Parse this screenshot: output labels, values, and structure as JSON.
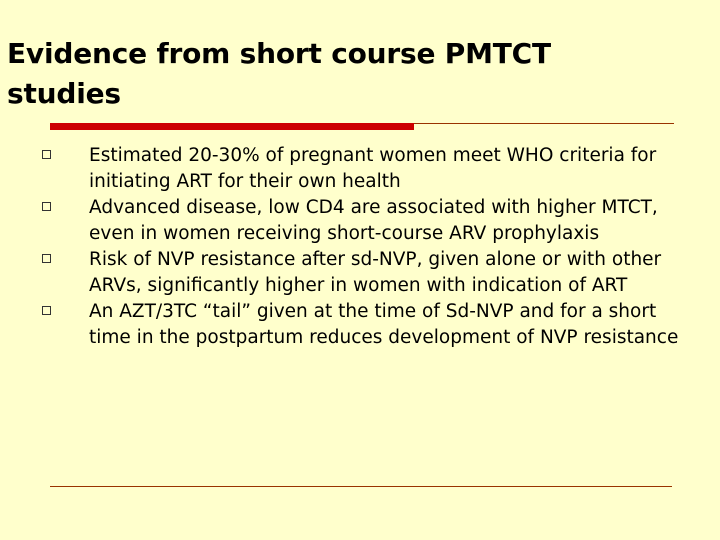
{
  "slide": {
    "title": "Evidence from short course PMTCT studies",
    "bullets": [
      "Estimated 20-30% of pregnant women meet WHO criteria for initiating ART for their own health",
      "Advanced disease, low CD4 are associated with higher MTCT, even in women receiving short-course ARV prophylaxis",
      "Risk of NVP resistance after sd-NVP, given alone or with other ARVs, significantly higher in women with indication of ART",
      "An AZT/3TC “tail” given at the time of Sd-NVP and for a short time in the postpartum reduces development of NVP resistance"
    ]
  },
  "colors": {
    "background": "#FFFFCC",
    "accent_bar": "#CC0000",
    "rule": "#993300"
  }
}
